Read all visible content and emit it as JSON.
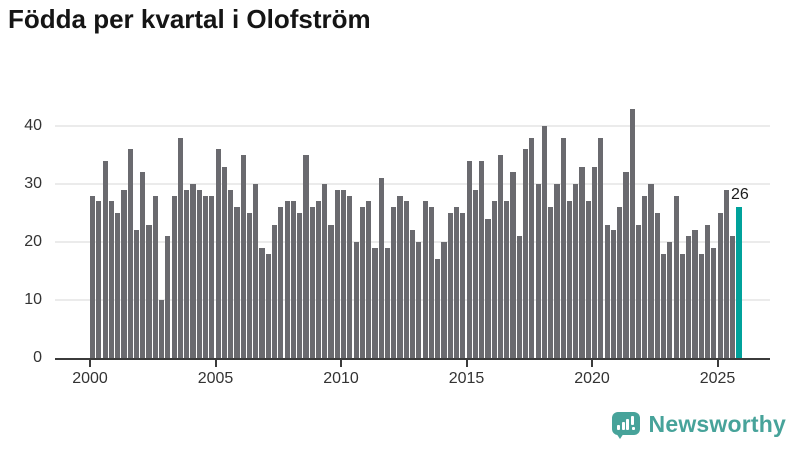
{
  "title": "Födda per kvartal i Olofström",
  "logo": {
    "text": "Newsworthy"
  },
  "colors": {
    "bar": "#6a6a6f",
    "highlight": "#00a29b",
    "gridline": "#ebebeb",
    "axis": "#3b3b3b",
    "tick_text": "#333333",
    "title_text": "#151515",
    "value_label_text": "#1c1c1c",
    "logo": "#47a39a"
  },
  "chart_data": {
    "type": "bar",
    "title": "Födda per kvartal i Olofström",
    "xlabel": "",
    "ylabel": "",
    "ylim": [
      0,
      43
    ],
    "grid": true,
    "y_ticks": [
      0,
      10,
      20,
      30,
      40
    ],
    "x_ticks": [
      2000,
      2005,
      2010,
      2015,
      2020,
      2025
    ],
    "frequency": "quarterly",
    "years": [
      {
        "year": 2000,
        "values": [
          28,
          27,
          34,
          27
        ]
      },
      {
        "year": 2001,
        "values": [
          25,
          29,
          36,
          22
        ]
      },
      {
        "year": 2002,
        "values": [
          32,
          23,
          28,
          10
        ]
      },
      {
        "year": 2003,
        "values": [
          21,
          28,
          38,
          29
        ]
      },
      {
        "year": 2004,
        "values": [
          30,
          29,
          28,
          28
        ]
      },
      {
        "year": 2005,
        "values": [
          36,
          33,
          29,
          26
        ]
      },
      {
        "year": 2006,
        "values": [
          35,
          25,
          30,
          19
        ]
      },
      {
        "year": 2007,
        "values": [
          18,
          23,
          26,
          27
        ]
      },
      {
        "year": 2008,
        "values": [
          27,
          25,
          35,
          26
        ]
      },
      {
        "year": 2009,
        "values": [
          27,
          30,
          23,
          29
        ]
      },
      {
        "year": 2010,
        "values": [
          29,
          28,
          20,
          26
        ]
      },
      {
        "year": 2011,
        "values": [
          27,
          19,
          31,
          19
        ]
      },
      {
        "year": 2012,
        "values": [
          26,
          28,
          27,
          22
        ]
      },
      {
        "year": 2013,
        "values": [
          20,
          27,
          26,
          17
        ]
      },
      {
        "year": 2014,
        "values": [
          20,
          25,
          26,
          25
        ]
      },
      {
        "year": 2015,
        "values": [
          34,
          29,
          34,
          24
        ]
      },
      {
        "year": 2016,
        "values": [
          27,
          35,
          27,
          32
        ]
      },
      {
        "year": 2017,
        "values": [
          21,
          36,
          38,
          30
        ]
      },
      {
        "year": 2018,
        "values": [
          40,
          26,
          30,
          38
        ]
      },
      {
        "year": 2019,
        "values": [
          27,
          30,
          33,
          27
        ]
      },
      {
        "year": 2020,
        "values": [
          33,
          38,
          23,
          22
        ]
      },
      {
        "year": 2021,
        "values": [
          26,
          32,
          43,
          23
        ]
      },
      {
        "year": 2022,
        "values": [
          28,
          30,
          25,
          18
        ]
      },
      {
        "year": 2023,
        "values": [
          20,
          28,
          18,
          21
        ]
      },
      {
        "year": 2024,
        "values": [
          22,
          18,
          23,
          19
        ]
      },
      {
        "year": 2025,
        "values": [
          25,
          29,
          21,
          26
        ]
      }
    ],
    "highlight_last_bar": {
      "label": "26",
      "value": 26
    }
  }
}
